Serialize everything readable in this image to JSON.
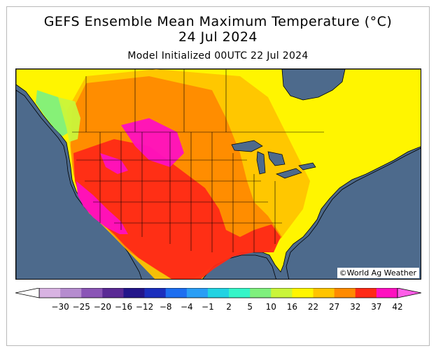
{
  "header": {
    "title_line1": "GEFS Ensemble Mean Maximum Temperature (°C)",
    "title_line2": "24 Jul 2024",
    "subtitle": "Model Initialized 00UTC 22 Jul 2024"
  },
  "map": {
    "copyright": "©World Ag Weather",
    "ocean_color": "#4d6a8c",
    "land_outline_color": "#000000"
  },
  "legend": {
    "labels": [
      "−30",
      "−25",
      "−20",
      "−16",
      "−12",
      "−8",
      "−4",
      "−1",
      "2",
      "5",
      "10",
      "16",
      "22",
      "27",
      "32",
      "37",
      "42"
    ],
    "colors": [
      "#d8b3e2",
      "#b58ccf",
      "#8a55b6",
      "#5a2a95",
      "#23168a",
      "#1b2fbd",
      "#1d6ef0",
      "#2a9ef5",
      "#22d3e2",
      "#35f5c8",
      "#7ff07d",
      "#caf53a",
      "#fff500",
      "#ffc400",
      "#ff8a00",
      "#ff2a16",
      "#ff10c0"
    ],
    "arrow_left_color": "#ffffff",
    "arrow_right_color": "#ff5ee8"
  }
}
